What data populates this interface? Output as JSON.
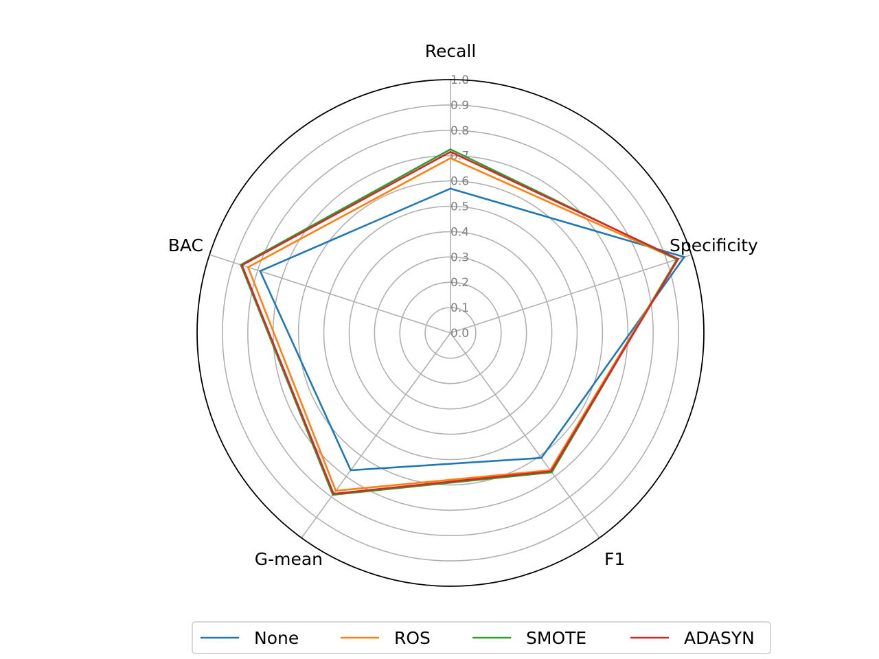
{
  "chart_data": {
    "type": "radar",
    "axes": [
      "Recall",
      "Specificity",
      "F1",
      "G-mean",
      "BAC"
    ],
    "rlim": [
      0,
      1.0
    ],
    "rticks": [
      "0.0",
      "0.1",
      "0.2",
      "0.3",
      "0.4",
      "0.5",
      "0.6",
      "0.7",
      "0.8",
      "0.9",
      "1.0"
    ],
    "grid": true,
    "legend_position": "bottom",
    "series": [
      {
        "name": "None",
        "color": "#1f77b4",
        "values": [
          0.57,
          0.97,
          0.61,
          0.67,
          0.79
        ]
      },
      {
        "name": "ROS",
        "color": "#ff7f0e",
        "values": [
          0.69,
          0.94,
          0.67,
          0.77,
          0.84
        ]
      },
      {
        "name": "SMOTE",
        "color": "#2ca02c",
        "values": [
          0.725,
          0.94,
          0.68,
          0.79,
          0.87
        ]
      },
      {
        "name": "ADASYN",
        "color": "#d62728",
        "values": [
          0.715,
          0.945,
          0.675,
          0.785,
          0.865
        ]
      }
    ]
  }
}
